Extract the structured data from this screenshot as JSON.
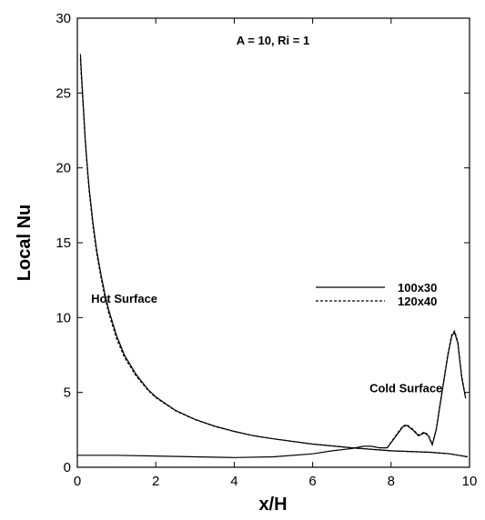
{
  "chart_data": {
    "type": "line",
    "title": "A = 10, Ri = 1",
    "xlabel": "x/H",
    "ylabel": "Local Nu",
    "xlim": [
      0,
      10
    ],
    "ylim": [
      0,
      30
    ],
    "xticks": [
      0,
      2,
      4,
      6,
      8,
      10
    ],
    "yticks": [
      0,
      5,
      10,
      15,
      20,
      25,
      30
    ],
    "grid": false,
    "legend_position": "center-right",
    "annotations": [
      {
        "id": "hot",
        "text": "Hot Surface",
        "x": 0.35,
        "y": 11.0
      },
      {
        "id": "cold",
        "text": "Cold Surface",
        "x": 7.45,
        "y": 5.0
      }
    ],
    "series": [
      {
        "name": "100x30",
        "style": "solid",
        "curves": [
          {
            "surface": "Hot Surface",
            "x": [
              0.08,
              0.1,
              0.15,
              0.2,
              0.25,
              0.3,
              0.4,
              0.5,
              0.6,
              0.7,
              0.8,
              1.0,
              1.2,
              1.5,
              1.8,
              2.0,
              2.5,
              3.0,
              3.5,
              4.0,
              4.5,
              5.0,
              6.0,
              7.0,
              8.0,
              9.0,
              9.5,
              9.95
            ],
            "y": [
              27.6,
              26.5,
              24.2,
              22.0,
              20.2,
              18.7,
              16.3,
              14.4,
              12.9,
              11.6,
              10.5,
              8.8,
              7.5,
              6.2,
              5.2,
              4.7,
              3.8,
              3.2,
              2.75,
              2.4,
              2.1,
              1.9,
              1.55,
              1.3,
              1.1,
              1.0,
              0.9,
              0.7
            ]
          },
          {
            "surface": "Cold Surface",
            "x": [
              0.0,
              1.0,
              2.0,
              3.0,
              4.0,
              5.0,
              6.0,
              6.5,
              7.0,
              7.3,
              7.5,
              7.7,
              7.9,
              8.1,
              8.3,
              8.4,
              8.55,
              8.7,
              8.85,
              8.95,
              9.05,
              9.15,
              9.3,
              9.45,
              9.55,
              9.62,
              9.7,
              9.8,
              9.9
            ],
            "y": [
              0.8,
              0.8,
              0.75,
              0.7,
              0.65,
              0.7,
              0.9,
              1.1,
              1.25,
              1.4,
              1.4,
              1.3,
              1.3,
              2.0,
              2.7,
              2.8,
              2.5,
              2.1,
              2.3,
              2.1,
              1.5,
              2.5,
              5.0,
              7.5,
              8.8,
              9.0,
              8.3,
              6.0,
              4.6
            ]
          }
        ]
      },
      {
        "name": "120x40",
        "style": "dashed",
        "curves": [
          {
            "surface": "Hot Surface",
            "x": [
              0.08,
              0.1,
              0.15,
              0.2,
              0.25,
              0.3,
              0.4,
              0.5,
              0.6,
              0.7,
              0.8,
              1.0,
              1.2,
              1.5,
              1.8,
              2.0,
              2.5,
              3.0,
              3.5,
              4.0,
              4.5,
              5.0,
              6.0,
              7.0,
              8.0,
              9.0,
              9.5,
              9.95
            ],
            "y": [
              27.3,
              26.2,
              24.0,
              21.8,
              20.0,
              18.5,
              16.1,
              14.2,
              12.7,
              11.4,
              10.3,
              8.6,
              7.35,
              6.1,
              5.15,
              4.65,
              3.78,
              3.18,
              2.73,
              2.39,
              2.1,
              1.9,
              1.55,
              1.3,
              1.1,
              1.0,
              0.9,
              0.7
            ]
          },
          {
            "surface": "Cold Surface",
            "x": [
              7.9,
              8.1,
              8.3,
              8.4,
              8.55,
              8.7,
              8.85,
              8.95,
              9.05,
              9.15,
              9.3,
              9.45,
              9.55,
              9.62,
              9.7,
              9.8,
              9.9
            ],
            "y": [
              1.3,
              2.05,
              2.75,
              2.85,
              2.55,
              2.15,
              2.35,
              2.15,
              1.55,
              2.55,
              5.1,
              7.6,
              8.9,
              9.1,
              8.4,
              6.1,
              4.7
            ]
          }
        ]
      }
    ]
  }
}
